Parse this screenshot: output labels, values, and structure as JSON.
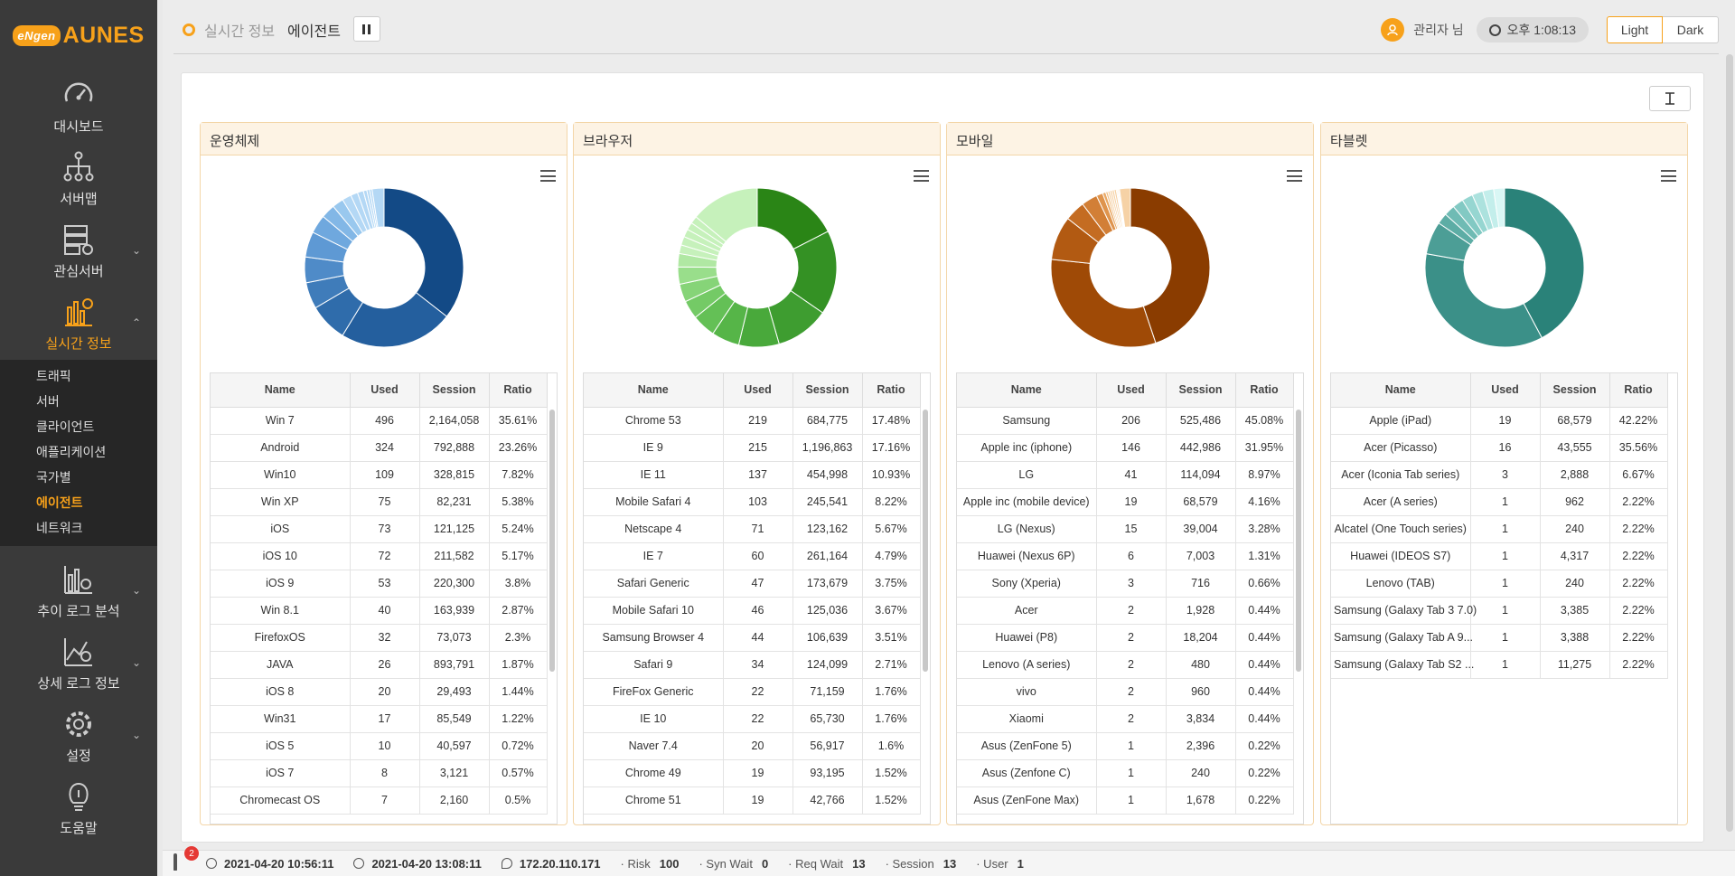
{
  "brand": {
    "mark": "eNgen",
    "word": "AUNES"
  },
  "nav": {
    "dashboard": "대시보드",
    "servermap": "서버맵",
    "interest": "관심서버",
    "realtime": "실시간 정보",
    "trend": "추이 로그 분석",
    "detail": "상세 로그 정보",
    "settings": "설정",
    "help": "도움말",
    "sub": [
      "트래픽",
      "서버",
      "클라이언트",
      "애플리케이션",
      "국가별",
      "에이전트",
      "네트워크"
    ]
  },
  "header": {
    "section": "실시간 정보",
    "page": "에이전트",
    "user": "관리자 님",
    "time": "오후 1:08:13",
    "light": "Light",
    "dark": "Dark"
  },
  "columns": [
    "Name",
    "Used",
    "Session",
    "Ratio"
  ],
  "panels": [
    {
      "title": "운영체제",
      "colors": [
        "#134a86",
        "#245f9e",
        "#2f6cab",
        "#3f7cba",
        "#4f8bc8",
        "#5e99d4",
        "#6fa8de",
        "#82b7e6",
        "#99c8ee",
        "#b4d8f5"
      ],
      "slices": [
        35.61,
        23.26,
        7.82,
        5.38,
        5.24,
        5.17,
        3.8,
        2.87,
        2.3,
        1.87,
        1.44,
        1.22,
        0.72,
        0.57,
        0.5,
        2.43
      ],
      "rows": [
        [
          "Win 7",
          "496",
          "2,164,058",
          "35.61%"
        ],
        [
          "Android",
          "324",
          "792,888",
          "23.26%"
        ],
        [
          "Win10",
          "109",
          "328,815",
          "7.82%"
        ],
        [
          "Win XP",
          "75",
          "82,231",
          "5.38%"
        ],
        [
          "iOS",
          "73",
          "121,125",
          "5.24%"
        ],
        [
          "iOS 10",
          "72",
          "211,582",
          "5.17%"
        ],
        [
          "iOS 9",
          "53",
          "220,300",
          "3.8%"
        ],
        [
          "Win 8.1",
          "40",
          "163,939",
          "2.87%"
        ],
        [
          "FirefoxOS",
          "32",
          "73,073",
          "2.3%"
        ],
        [
          "JAVA",
          "26",
          "893,791",
          "1.87%"
        ],
        [
          "iOS 8",
          "20",
          "29,493",
          "1.44%"
        ],
        [
          "Win31",
          "17",
          "85,549",
          "1.22%"
        ],
        [
          "iOS 5",
          "10",
          "40,597",
          "0.72%"
        ],
        [
          "iOS 7",
          "8",
          "3,121",
          "0.57%"
        ],
        [
          "Chromecast OS",
          "7",
          "2,160",
          "0.5%"
        ]
      ]
    },
    {
      "title": "브라우저",
      "colors": [
        "#2a8516",
        "#349124",
        "#3e9d30",
        "#49a93b",
        "#56b548",
        "#64c056",
        "#74ca66",
        "#86d478",
        "#99de8b",
        "#b0e8a3",
        "#c6f1bb"
      ],
      "slices": [
        17.48,
        17.16,
        10.93,
        8.22,
        5.67,
        4.79,
        3.75,
        3.67,
        3.51,
        2.71,
        1.76,
        1.76,
        1.6,
        1.52,
        1.52,
        14.0
      ],
      "rows": [
        [
          "Chrome 53",
          "219",
          "684,775",
          "17.48%"
        ],
        [
          "IE 9",
          "215",
          "1,196,863",
          "17.16%"
        ],
        [
          "IE 11",
          "137",
          "454,998",
          "10.93%"
        ],
        [
          "Mobile Safari 4",
          "103",
          "245,541",
          "8.22%"
        ],
        [
          "Netscape 4",
          "71",
          "123,162",
          "5.67%"
        ],
        [
          "IE 7",
          "60",
          "261,164",
          "4.79%"
        ],
        [
          "Safari Generic",
          "47",
          "173,679",
          "3.75%"
        ],
        [
          "Mobile Safari 10",
          "46",
          "125,036",
          "3.67%"
        ],
        [
          "Samsung Browser 4",
          "44",
          "106,639",
          "3.51%"
        ],
        [
          "Safari 9",
          "34",
          "124,099",
          "2.71%"
        ],
        [
          "FireFox Generic",
          "22",
          "71,159",
          "1.76%"
        ],
        [
          "IE 10",
          "22",
          "65,730",
          "1.76%"
        ],
        [
          "Naver 7.4",
          "20",
          "56,917",
          "1.6%"
        ],
        [
          "Chrome 49",
          "19",
          "93,195",
          "1.52%"
        ],
        [
          "Chrome 51",
          "19",
          "42,766",
          "1.52%"
        ]
      ]
    },
    {
      "title": "모바일",
      "colors": [
        "#8a3c00",
        "#9f4a06",
        "#b25a12",
        "#c46c22",
        "#d27f36",
        "#df944d",
        "#e9a966",
        "#f1bf84",
        "#f6d2a6"
      ],
      "slices": [
        45.08,
        31.95,
        8.97,
        4.16,
        3.28,
        1.31,
        0.66,
        0.44,
        0.44,
        0.44,
        0.44,
        0.44,
        0.22,
        0.22,
        0.22,
        2.23
      ],
      "rows": [
        [
          "Samsung",
          "206",
          "525,486",
          "45.08%"
        ],
        [
          "Apple inc (iphone)",
          "146",
          "442,986",
          "31.95%"
        ],
        [
          "LG",
          "41",
          "114,094",
          "8.97%"
        ],
        [
          "Apple inc (mobile device)",
          "19",
          "68,579",
          "4.16%"
        ],
        [
          "LG (Nexus)",
          "15",
          "39,004",
          "3.28%"
        ],
        [
          "Huawei (Nexus 6P)",
          "6",
          "7,003",
          "1.31%"
        ],
        [
          "Sony (Xperia)",
          "3",
          "716",
          "0.66%"
        ],
        [
          "Acer",
          "2",
          "1,928",
          "0.44%"
        ],
        [
          "Huawei (P8)",
          "2",
          "18,204",
          "0.44%"
        ],
        [
          "Lenovo (A series)",
          "2",
          "480",
          "0.44%"
        ],
        [
          "vivo",
          "2",
          "960",
          "0.44%"
        ],
        [
          "Xiaomi",
          "2",
          "3,834",
          "0.44%"
        ],
        [
          "Asus (ZenFone 5)",
          "1",
          "2,396",
          "0.22%"
        ],
        [
          "Asus (Zenfone C)",
          "1",
          "240",
          "0.22%"
        ],
        [
          "Asus (ZenFone Max)",
          "1",
          "1,678",
          "0.22%"
        ]
      ]
    },
    {
      "title": "타블렛",
      "colors": [
        "#2a8279",
        "#3b9088",
        "#4c9e96",
        "#5dada5",
        "#6fbbb4",
        "#82c9c3",
        "#96d6d1",
        "#acE2de",
        "#c3eeeb",
        "#d9f7f5"
      ],
      "slices": [
        42.22,
        35.56,
        6.67,
        2.22,
        2.22,
        2.22,
        2.22,
        2.22,
        2.22,
        2.22
      ],
      "rows": [
        [
          "Apple (iPad)",
          "19",
          "68,579",
          "42.22%"
        ],
        [
          "Acer (Picasso)",
          "16",
          "43,555",
          "35.56%"
        ],
        [
          "Acer (Iconia Tab series)",
          "3",
          "2,888",
          "6.67%"
        ],
        [
          "Acer (A series)",
          "1",
          "962",
          "2.22%"
        ],
        [
          "Alcatel (One Touch series)",
          "1",
          "240",
          "2.22%"
        ],
        [
          "Huawei (IDEOS S7)",
          "1",
          "4,317",
          "2.22%"
        ],
        [
          "Lenovo (TAB)",
          "1",
          "240",
          "2.22%"
        ],
        [
          "Samsung (Galaxy Tab 3 7.0)",
          "1",
          "3,385",
          "2.22%"
        ],
        [
          "Samsung (Galaxy Tab A 9...",
          "1",
          "3,388",
          "2.22%"
        ],
        [
          "Samsung (Galaxy Tab S2 ...",
          "1",
          "11,275",
          "2.22%"
        ]
      ]
    }
  ],
  "status": {
    "alerts": "2",
    "start": "2021-04-20 10:56:11",
    "end": "2021-04-20 13:08:11",
    "ip": "172.20.110.171",
    "risk_label": "· Risk",
    "risk": "100",
    "syn_label": "· Syn Wait",
    "syn": "0",
    "req_label": "· Req Wait",
    "req": "13",
    "session_label": "· Session",
    "session": "13",
    "user_label": "· User",
    "user": "1"
  }
}
